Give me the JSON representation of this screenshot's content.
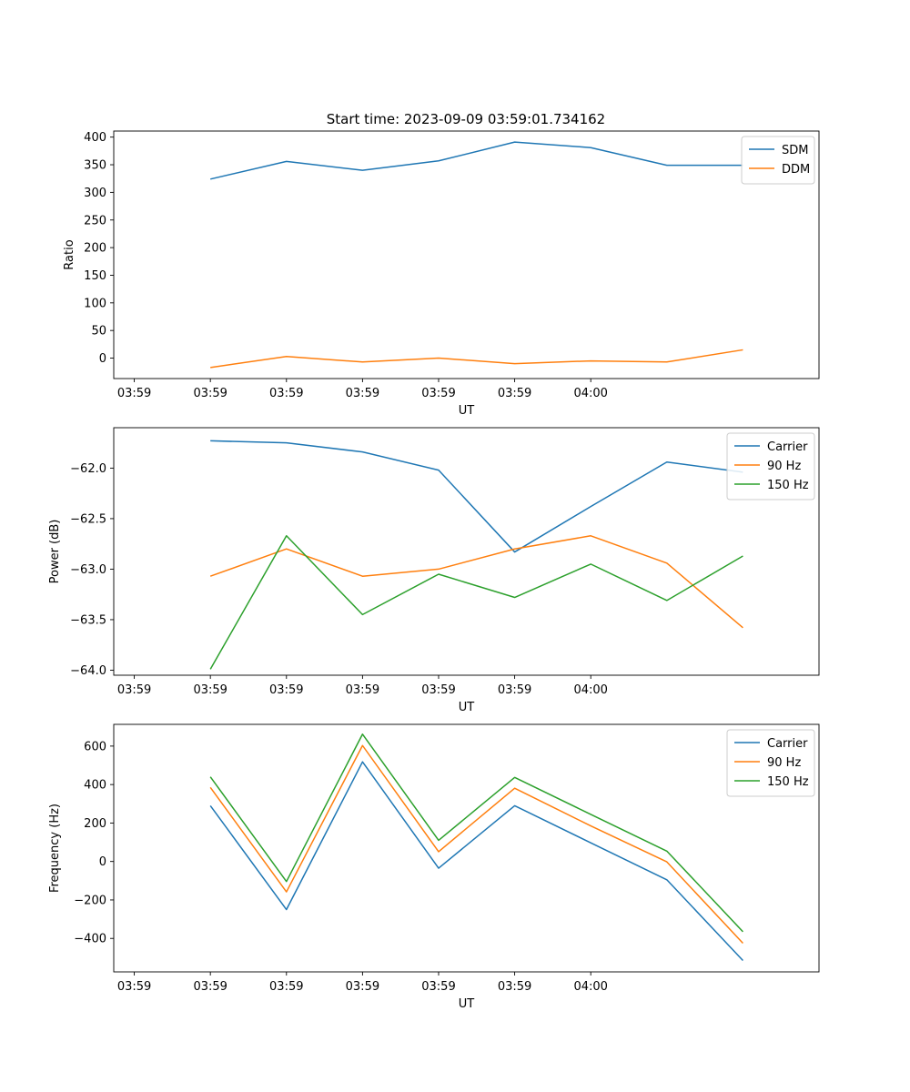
{
  "figure_title": "Start time: 2023-09-09 03:59:01.734162",
  "chart_data": [
    {
      "type": "line",
      "xlabel": "UT",
      "ylabel": "Ratio",
      "xticks": [
        "03:59",
        "03:59",
        "03:59",
        "03:59",
        "03:59",
        "03:59",
        "04:00"
      ],
      "x": [
        1,
        2,
        3,
        4,
        5,
        6,
        7,
        8
      ],
      "xlim": [
        -0.27,
        9.0
      ],
      "ylim": [
        -37,
        411
      ],
      "yticks": [
        0,
        50,
        100,
        150,
        200,
        250,
        300,
        350,
        400
      ],
      "legend_position": "top-right",
      "series": [
        {
          "name": "SDM",
          "color": "#1f77b4",
          "values": [
            324,
            356,
            340,
            357,
            391,
            381,
            349,
            349
          ]
        },
        {
          "name": "DDM",
          "color": "#ff7f0e",
          "values": [
            -17,
            3,
            -7,
            0,
            -10,
            -5,
            -7,
            15
          ]
        }
      ]
    },
    {
      "type": "line",
      "xlabel": "UT",
      "ylabel": "Power (dB)",
      "xticks": [
        "03:59",
        "03:59",
        "03:59",
        "03:59",
        "03:59",
        "03:59",
        "04:00"
      ],
      "x": [
        1,
        2,
        3,
        4,
        5,
        6,
        7,
        8
      ],
      "xlim": [
        -0.27,
        9.0
      ],
      "ylim": [
        -64.05,
        -61.6
      ],
      "yticks": [
        -64.0,
        -63.5,
        -63.0,
        -62.5,
        -62.0
      ],
      "ytick_labels": [
        "−64.0",
        "−63.5",
        "−63.0",
        "−62.5",
        "−62.0"
      ],
      "legend_position": "top-right",
      "series": [
        {
          "name": "Carrier",
          "color": "#1f77b4",
          "values": [
            -61.73,
            -61.75,
            -61.84,
            -62.02,
            -62.83,
            -62.38,
            -61.94,
            -62.04
          ]
        },
        {
          "name": "90 Hz",
          "color": "#ff7f0e",
          "values": [
            -63.07,
            -62.8,
            -63.07,
            -63.0,
            -62.8,
            -62.67,
            -62.94,
            -63.58
          ]
        },
        {
          "name": "150 Hz",
          "color": "#2ca02c",
          "values": [
            -63.99,
            -62.67,
            -63.45,
            -63.05,
            -63.28,
            -62.95,
            -63.31,
            -62.87
          ]
        }
      ]
    },
    {
      "type": "line",
      "xlabel": "UT",
      "ylabel": "Frequency (Hz)",
      "xticks": [
        "03:59",
        "03:59",
        "03:59",
        "03:59",
        "03:59",
        "03:59",
        "04:00"
      ],
      "x": [
        1,
        2,
        3,
        4,
        5,
        6,
        7,
        8
      ],
      "xlim": [
        -0.27,
        9.0
      ],
      "ylim": [
        -574,
        713
      ],
      "yticks": [
        -400,
        -200,
        0,
        200,
        400,
        600
      ],
      "ytick_labels": [
        "−400",
        "−200",
        "0",
        "200",
        "400",
        "600"
      ],
      "legend_position": "top-right",
      "series": [
        {
          "name": "Carrier",
          "color": "#1f77b4",
          "values": [
            290,
            -250,
            518,
            -35,
            290,
            97,
            -95,
            -515
          ]
        },
        {
          "name": "90 Hz",
          "color": "#ff7f0e",
          "values": [
            385,
            -158,
            603,
            51,
            381,
            185,
            -2,
            -425
          ]
        },
        {
          "name": "150 Hz",
          "color": "#2ca02c",
          "values": [
            440,
            -104,
            662,
            110,
            437,
            245,
            54,
            -365
          ]
        }
      ]
    }
  ]
}
